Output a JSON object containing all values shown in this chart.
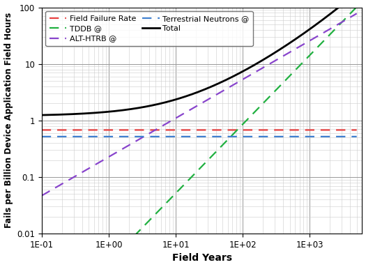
{
  "xlabel": "Field Years",
  "ylabel": "Fails per Billion Device Application Field Hours",
  "field_failure_rate": 0.68,
  "terrestrial_neutrons": 0.52,
  "alt_htrb_slope": 0.685,
  "alt_htrb_intercept_log": -0.643,
  "tddb_slope": 1.22,
  "tddb_intercept_log": -2.505,
  "colors": {
    "field_failure_rate": "#e84040",
    "tddb": "#20b040",
    "alt_htrb": "#8844cc",
    "terrestrial_neutrons": "#4080d0",
    "total": "#000000"
  },
  "legend_labels": {
    "field_failure_rate": "Field Failure Rate",
    "tddb": "TDDB @",
    "alt_htrb": "ALT-HTRB @",
    "terrestrial_neutrons": "Terrestrial Neutrons @",
    "total": "Total"
  },
  "background_color": "#ffffff",
  "grid_minor_color": "#cccccc",
  "grid_major_color": "#999999"
}
